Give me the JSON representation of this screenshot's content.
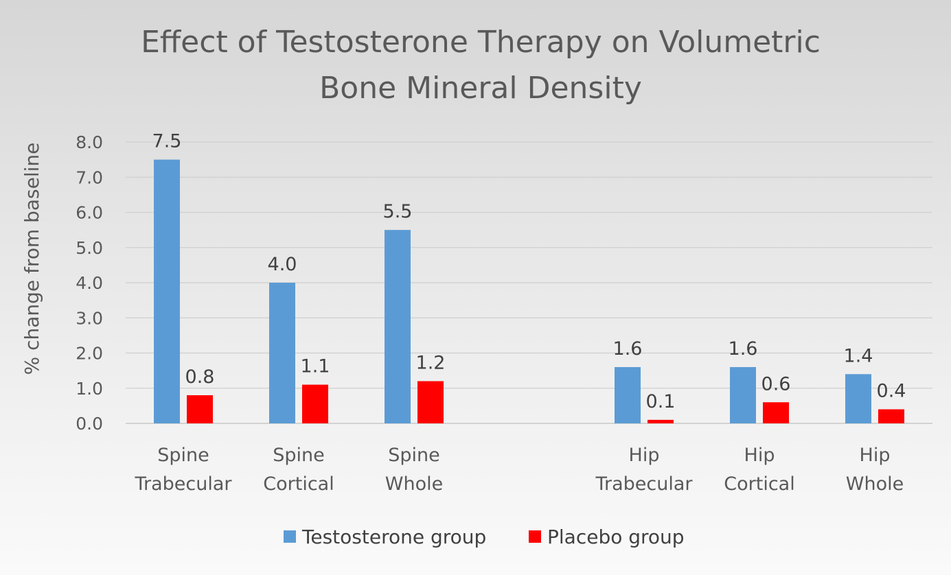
{
  "chart_data": {
    "type": "bar",
    "title": "Effect of Testosterone Therapy on Volumetric Bone Mineral Density",
    "title_lines": [
      "Effect of Testosterone Therapy on Volumetric",
      "Bone Mineral Density"
    ],
    "ylabel": "% change from baseline",
    "xlabel": "",
    "ylim": [
      0,
      8
    ],
    "yticks": [
      "0.0",
      "1.0",
      "2.0",
      "3.0",
      "4.0",
      "5.0",
      "6.0",
      "7.0",
      "8.0"
    ],
    "grid": true,
    "legend_position": "bottom",
    "categories": [
      [
        "Spine",
        "Trabecular"
      ],
      [
        "Spine",
        "Cortical"
      ],
      [
        "Spine",
        "Whole"
      ],
      [
        "Hip",
        "Trabecular"
      ],
      [
        "Hip",
        "Cortical"
      ],
      [
        "Hip",
        "Whole"
      ]
    ],
    "series": [
      {
        "name": "Testosterone group",
        "color": "#5b9bd5",
        "values": [
          7.5,
          4.0,
          5.5,
          1.6,
          1.6,
          1.4
        ],
        "labels": [
          "7.5",
          "4.0",
          "5.5",
          "1.6",
          "1.6",
          "1.4"
        ]
      },
      {
        "name": "Placebo group",
        "color": "#ff0000",
        "values": [
          0.8,
          1.1,
          1.2,
          0.1,
          0.6,
          0.4
        ],
        "labels": [
          "0.8",
          "1.1",
          "1.2",
          "0.1",
          "0.6",
          "0.4"
        ]
      }
    ]
  }
}
